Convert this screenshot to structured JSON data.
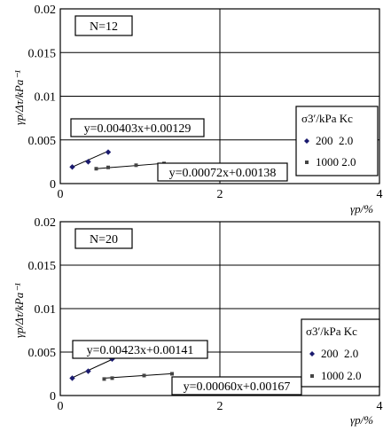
{
  "chart_data": [
    {
      "type": "scatter",
      "panel_label": "N=12",
      "ylabel": "γp/Δτ/kPa⁻¹",
      "xlabel": "γp/%",
      "xlim": [
        0,
        4
      ],
      "ylim": [
        0,
        0.02
      ],
      "x_ticks": [
        "0",
        "2",
        "4"
      ],
      "y_ticks": [
        "0",
        "0.005",
        "0.01",
        "0.015",
        "0.02"
      ],
      "grid": true,
      "legend_title": "σ3′/kPa  Kc",
      "legend_position": "right",
      "series": [
        {
          "name": "200  2.0",
          "marker": "diamond",
          "x": [
            0.15,
            0.35,
            0.6
          ],
          "y": [
            0.0019,
            0.0025,
            0.0036
          ],
          "fit": {
            "equation": "y=0.00403x+0.00129",
            "slope": 0.00403,
            "intercept": 0.00129
          }
        },
        {
          "name": "1000 2.0",
          "marker": "square",
          "x": [
            0.45,
            0.6,
            0.95,
            1.3
          ],
          "y": [
            0.0017,
            0.00185,
            0.0021,
            0.0023
          ],
          "fit": {
            "equation": "y=0.00072x+0.00138",
            "slope": 0.00072,
            "intercept": 0.00138
          }
        }
      ]
    },
    {
      "type": "scatter",
      "panel_label": "N=20",
      "ylabel": "γp/Δτ/kPa⁻¹",
      "xlabel": "γp/%",
      "xlim": [
        0,
        4
      ],
      "ylim": [
        0,
        0.02
      ],
      "x_ticks": [
        "0",
        "2",
        "4"
      ],
      "y_ticks": [
        "0",
        "0.005",
        "0.01",
        "0.015",
        "0.02"
      ],
      "grid": true,
      "legend_title": "σ3′/kPa  Kc",
      "legend_position": "right",
      "series": [
        {
          "name": "200  2.0",
          "marker": "diamond",
          "x": [
            0.15,
            0.35,
            0.65
          ],
          "y": [
            0.002,
            0.0028,
            0.0042
          ],
          "fit": {
            "equation": "y=0.00423x+0.00141",
            "slope": 0.00423,
            "intercept": 0.00141
          }
        },
        {
          "name": "1000 2.0",
          "marker": "square",
          "x": [
            0.55,
            0.65,
            1.05,
            1.4
          ],
          "y": [
            0.0019,
            0.002,
            0.0023,
            0.0025
          ],
          "fit": {
            "equation": "y=0.00060x+0.00167",
            "slope": 0.0006,
            "intercept": 0.00167
          }
        }
      ]
    }
  ]
}
